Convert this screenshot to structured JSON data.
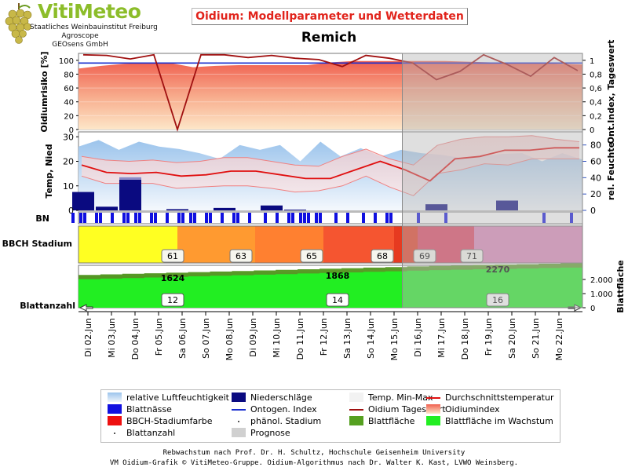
{
  "logo": {
    "title": "VitiMeteo",
    "line1": "Staatliches Weinbauinstitut Freiburg",
    "line2": "Agroscope",
    "line3": "GEOsens GmbH"
  },
  "title": "Oidium: Modellparameter und Wetterdaten",
  "location": "Remich",
  "colors": {
    "risk_line": "#a01010",
    "ontogen_line": "#1a2fcf",
    "temp_line": "#e01010",
    "precip": "#0a0a80",
    "leaf_wetness": "#1010e0",
    "leaf_area": "#22ee22",
    "leaf_area_dark": "#55a020",
    "forecast_shade": "#b8b8b8"
  },
  "chart_data": [
    {
      "type": "area",
      "name": "risk",
      "ylabel_left": "Oidiumrisiko [%]",
      "ylabel_right": "Ont.Index, Tageswert",
      "yticks_left": [
        "0",
        "20",
        "40",
        "60",
        "80",
        "100"
      ],
      "yticks_right": [
        "0",
        "0,2",
        "0,4",
        "0,6",
        "0,8",
        "1"
      ],
      "ylim_left": [
        0,
        110
      ],
      "ylim_right": [
        0,
        1.1
      ],
      "oidiumindex": [
        88,
        92,
        95,
        96,
        96,
        90,
        92,
        93,
        93,
        93,
        93,
        97,
        99,
        99,
        99,
        99,
        99,
        98,
        97,
        97,
        96,
        95,
        94
      ],
      "tageswert": [
        1.08,
        1.07,
        1.02,
        1.08,
        0.0,
        1.08,
        1.08,
        1.04,
        1.07,
        1.03,
        1.01,
        0.91,
        1.07,
        1.03,
        0.96,
        0.72,
        0.84,
        1.08,
        0.94,
        0.77,
        1.04,
        0.85
      ],
      "ontogen_index": 0.96
    },
    {
      "type": "area",
      "name": "weather",
      "ylabel_left": "Temp, Nied",
      "ylabel_right": "rel. Feuchte",
      "yticks_left": [
        "0",
        "10",
        "20",
        "30"
      ],
      "yticks_right": [
        "0",
        "20",
        "40",
        "60",
        "80"
      ],
      "ylim_left": [
        0,
        32
      ],
      "ylim_right": [
        0,
        96
      ],
      "humidity": [
        78,
        86,
        74,
        84,
        78,
        75,
        70,
        63,
        80,
        74,
        80,
        60,
        84,
        66,
        76,
        66,
        74,
        70,
        68,
        64,
        66,
        69,
        70,
        60,
        70,
        62
      ],
      "temp_mean": [
        18.5,
        15.5,
        15,
        15.5,
        14,
        14.5,
        16,
        16,
        14.5,
        13,
        13,
        16.5,
        20,
        16.5,
        12,
        21,
        22,
        24.5,
        24.5,
        25.5,
        25.5
      ],
      "temp_max": [
        22,
        20.5,
        20,
        20.5,
        19.5,
        20,
        21.5,
        21.5,
        20,
        18.5,
        18,
        22,
        25,
        21,
        18.5,
        26.5,
        29,
        30,
        30,
        30.5,
        29,
        28
      ],
      "temp_min": [
        14,
        11,
        11,
        11,
        9,
        9.5,
        10,
        10,
        9,
        7.5,
        8,
        10,
        14,
        9.5,
        6,
        15,
        16.5,
        19,
        18.5,
        21,
        21,
        21
      ],
      "precip": [
        7.5,
        1.5,
        12.5,
        0,
        0.5,
        0,
        1,
        0,
        2,
        0.3,
        0,
        0,
        0,
        0,
        0,
        2.5,
        0,
        0,
        4,
        0,
        0,
        0
      ],
      "precip_light": [
        0,
        0,
        13.5,
        0,
        0,
        0,
        0,
        0,
        0,
        0,
        0,
        0,
        0,
        0,
        0,
        0,
        0,
        0,
        0,
        0,
        0,
        0
      ]
    },
    {
      "type": "heatmap",
      "name": "blattnaesse",
      "label": "BN",
      "wet_fraction": [
        0.45,
        0.35,
        0.55,
        0.4,
        0.5,
        0.55,
        0.35,
        0.5,
        0.4,
        0.55,
        0.5,
        0.25,
        0.25,
        0.35,
        0.2,
        0.1,
        0.05,
        0.05,
        0.0,
        0.05,
        0.05,
        0.05
      ]
    },
    {
      "type": "bar",
      "name": "bbch",
      "label": "BBCH Stadium",
      "stages": [
        "61",
        "63",
        "65",
        "68",
        "69",
        "71"
      ],
      "stage_colors": [
        "#ffff22",
        "#ff9a30",
        "#ff8030",
        "#f55530",
        "#e63a20",
        "#e04060",
        "#dd88bb"
      ]
    },
    {
      "type": "area",
      "name": "blattflaeche",
      "label": "Blattanzahl",
      "ylabel_right": "Blattfläche",
      "yticks_right": [
        "0",
        "1.000",
        "2.000"
      ],
      "ylim_right": [
        0,
        3000
      ],
      "leaf_area_labels": [
        "1624",
        "1868",
        "2270"
      ],
      "leaf_count_labels": [
        "12",
        "14",
        "16"
      ],
      "leaf_area": [
        1620,
        1660,
        1700,
        1740,
        1780,
        1820,
        1860,
        1900,
        1940,
        1980,
        2020,
        2060,
        2100,
        2140,
        2180,
        2220,
        2260,
        2290,
        2320,
        2350,
        2380,
        2410,
        2440
      ]
    }
  ],
  "x_axis": {
    "labels": [
      "Di 02.Jun",
      "Mi 03.Jun",
      "Do 04.Jun",
      "Fr 05.Jun",
      "Sa 06.Jun",
      "So 07.Jun",
      "Mo 08.Jun",
      "Di 09.Jun",
      "Mi 10.Jun",
      "Do 11.Jun",
      "Fr 12.Jun",
      "Sa 13.Jun",
      "So 14.Jun",
      "Mo 15.Jun",
      "Di 16.Jun",
      "Mi 17.Jun",
      "Do 18.Jun",
      "Fr 19.Jun",
      "Sa 20.Jun",
      "So 21.Jun",
      "Mo 22.Jun"
    ],
    "forecast_start_day": 14
  },
  "legend": {
    "items": [
      {
        "label": "relative Luftfeuchtigkeit",
        "icon": "humidity-swatch"
      },
      {
        "label": "Niederschläge",
        "icon": "precip-swatch"
      },
      {
        "label": "Temp. Min-Max",
        "icon": "temp-range-swatch"
      },
      {
        "label": "Durchschnittstemperatur",
        "icon": "temp-line-swatch"
      },
      {
        "label": "Blattnässe",
        "icon": "leaf-wetness-swatch"
      },
      {
        "label": "Ontogen. Index",
        "icon": "ontogen-line-swatch"
      },
      {
        "label": "Oidium Tageswert",
        "icon": "daily-value-line-swatch"
      },
      {
        "label": "Oidiumindex",
        "icon": "oidiumindex-swatch"
      },
      {
        "label": "BBCH-Stadiumfarbe",
        "icon": "bbch-swatch"
      },
      {
        "label": "phänol. Stadium",
        "icon": "stage-dot"
      },
      {
        "label": "Blattfläche",
        "icon": "leaf-area-swatch"
      },
      {
        "label": "Blattfläche im Wachstum",
        "icon": "leaf-growth-swatch"
      },
      {
        "label": "Blattanzahl",
        "icon": "leaf-count-dot"
      },
      {
        "label": "Prognose",
        "icon": "forecast-swatch"
      }
    ]
  },
  "footer": {
    "line1": "Rebwachstum nach Prof. Dr. H. Schultz, Hochschule Geisenheim University",
    "line2": "VM Oidium-Grafik © VitiMeteo-Gruppe. Oidium-Algorithmus nach Dr. Walter K. Kast, LVWO Weinsberg."
  }
}
